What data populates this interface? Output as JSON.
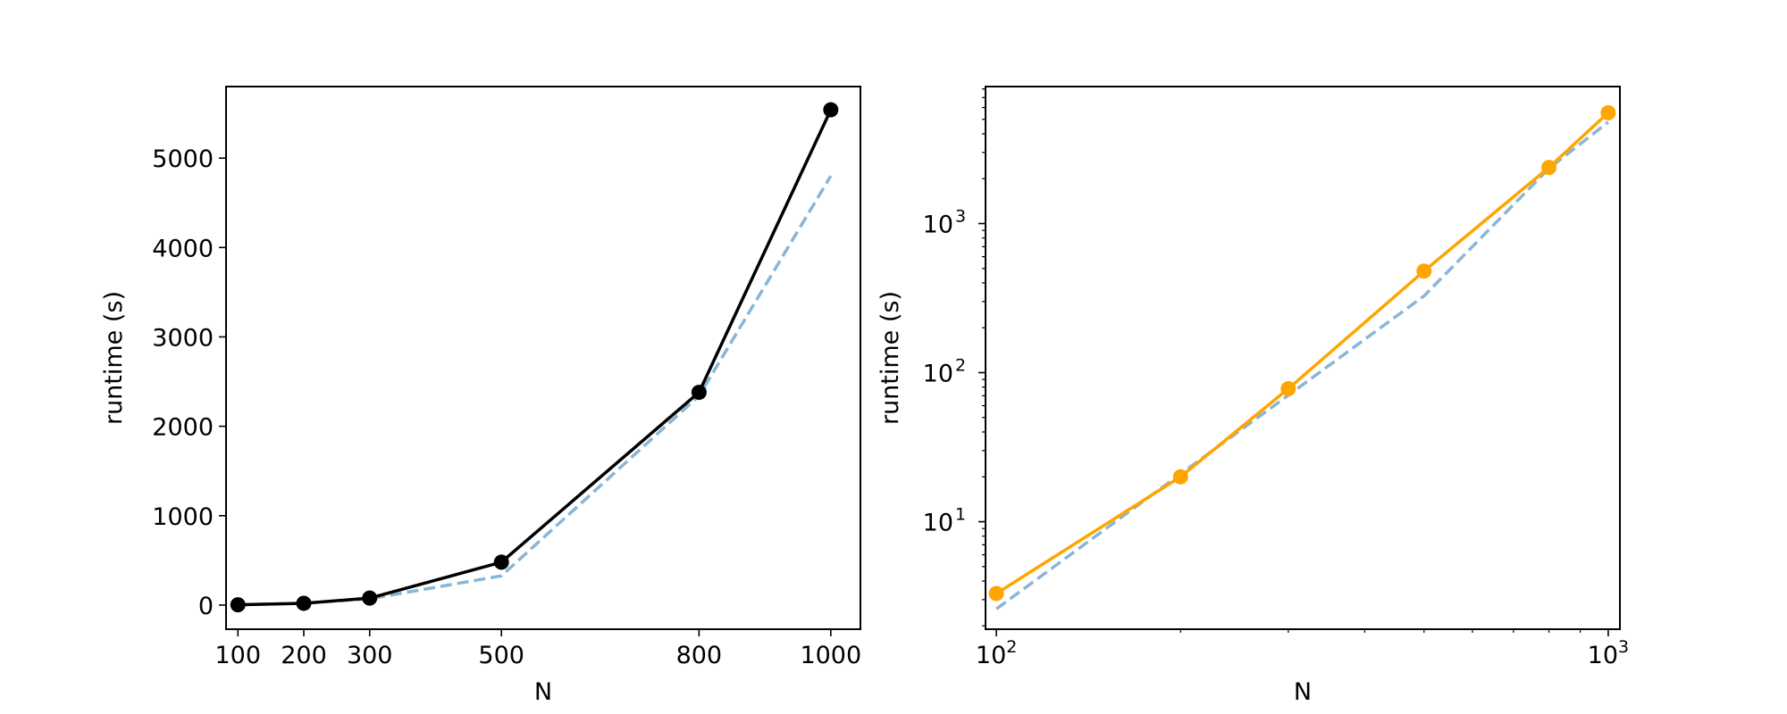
{
  "chart_data": [
    {
      "type": "line",
      "xlabel": "N",
      "ylabel": "runtime (s)",
      "x": [
        100,
        200,
        300,
        500,
        800,
        1000
      ],
      "xticks": [
        100,
        200,
        300,
        500,
        800,
        1000
      ],
      "xtick_labels": [
        "100",
        "200",
        "300",
        "500",
        "800",
        "1000"
      ],
      "yticks": [
        0,
        1000,
        2000,
        3000,
        4000,
        5000
      ],
      "ytick_labels": [
        "0",
        "1000",
        "2000",
        "3000",
        "4000",
        "5000"
      ],
      "xlim": [
        82,
        1045
      ],
      "ylim": [
        -270,
        5800
      ],
      "xscale": "linear",
      "yscale": "linear",
      "grid": false,
      "series": [
        {
          "style": "solid-with-markers",
          "color": "#000000",
          "values": [
            3.3,
            20,
            78,
            480,
            2380,
            5540
          ]
        },
        {
          "style": "dashed",
          "color": "#8ab6d6",
          "values": [
            2.6,
            20.9,
            70.5,
            327,
            2340,
            4800
          ]
        }
      ]
    },
    {
      "type": "line",
      "xlabel": "N",
      "ylabel": "runtime (s)",
      "x": [
        100,
        200,
        300,
        500,
        800,
        1000
      ],
      "xticks": [
        100,
        1000
      ],
      "xtick_labels": [
        "10",
        "10"
      ],
      "xtick_exponents": [
        "2",
        "3"
      ],
      "yticks": [
        10,
        100,
        1000
      ],
      "ytick_labels": [
        "10",
        "10",
        "10"
      ],
      "ytick_exponents": [
        "1",
        "2",
        "3"
      ],
      "xlim": [
        96,
        1045
      ],
      "ylim": [
        1.9,
        8300
      ],
      "xscale": "log",
      "yscale": "log",
      "grid": false,
      "series": [
        {
          "style": "solid-with-markers",
          "color": "#ffa500",
          "values": [
            3.3,
            20,
            78,
            480,
            2380,
            5540
          ]
        },
        {
          "style": "dashed",
          "color": "#8ab6d6",
          "values": [
            2.6,
            20.9,
            70.5,
            327,
            2340,
            4800
          ]
        }
      ]
    }
  ]
}
